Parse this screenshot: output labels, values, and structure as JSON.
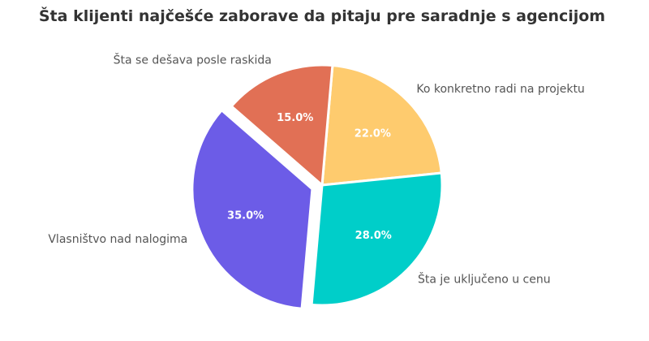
{
  "chart_data": {
    "type": "pie",
    "title": "Šta klijenti najčešće zaborave da pitaju pre saradnje s agencijom",
    "slices": [
      {
        "label": "Ko konkretno radi na projektu",
        "value": 22.0,
        "pct_label": "22.0%",
        "color": "#FECB6E"
      },
      {
        "label": "Šta je uključeno u cenu",
        "value": 28.0,
        "pct_label": "28.0%",
        "color": "#00CEC9"
      },
      {
        "label": "Vlasništvo nad nalogima",
        "value": 35.0,
        "pct_label": "35.0%",
        "color": "#6C5CE7"
      },
      {
        "label": "Šta se dešava posle raskida",
        "value": 15.0,
        "pct_label": "15.0%",
        "color": "#E17055"
      }
    ],
    "exploded": "Vlasništvo nad nalogima",
    "legend": "none"
  }
}
